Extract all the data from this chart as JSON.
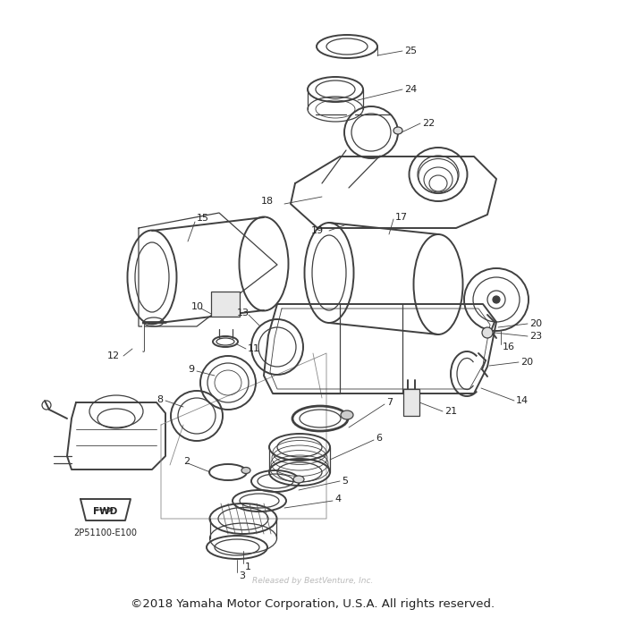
{
  "copyright": "©2018 Yamaha Motor Corporation, U.S.A. All rights reserved.",
  "watermark": "Released by BestVenture, Inc.",
  "part_number": "2P51100-E100",
  "fwd_label": "FWD",
  "background_color": "#ffffff",
  "line_color": "#404040",
  "text_color": "#222222",
  "copyright_fontsize": 9.5,
  "watermark_fontsize": 6.5,
  "fig_width": 7.0,
  "fig_height": 7.0,
  "dpi": 100
}
